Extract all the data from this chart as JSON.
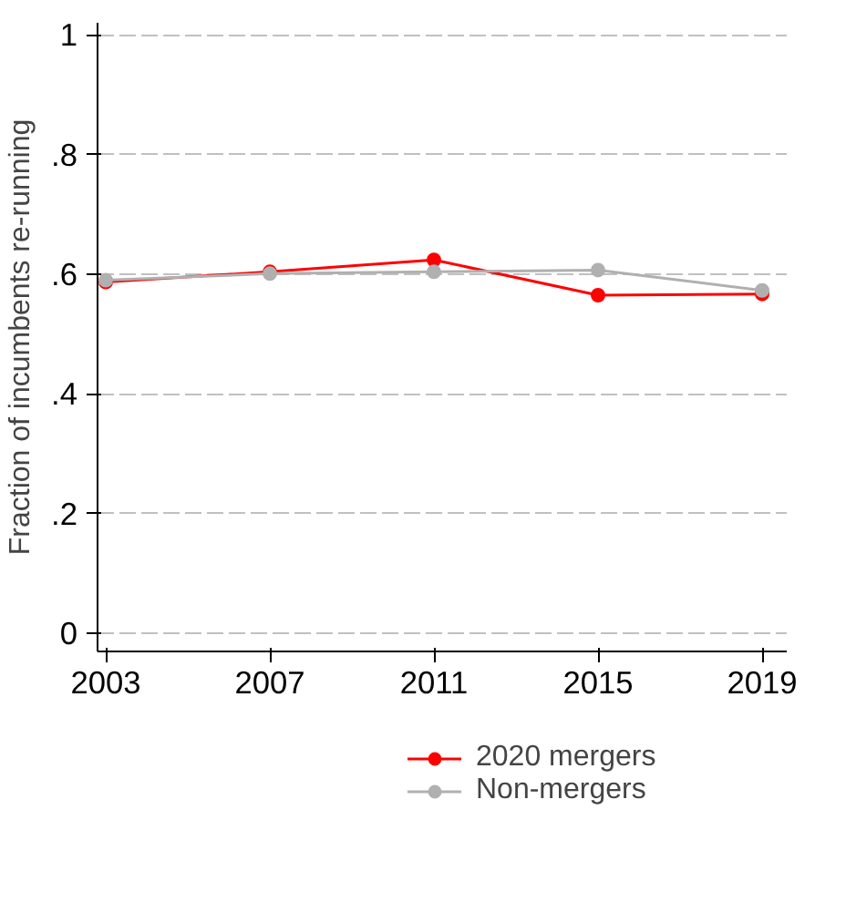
{
  "chart_data": {
    "type": "line",
    "ylabel": "Fraction of incumbents re-running",
    "x": [
      2003,
      2007,
      2011,
      2015,
      2019
    ],
    "series": [
      {
        "name": "2020 mergers",
        "color": "#ff0000",
        "values": [
          0.587,
          0.604,
          0.624,
          0.565,
          0.567
        ]
      },
      {
        "name": "Non-mergers",
        "color": "#b0b0b0",
        "values": [
          0.59,
          0.601,
          0.604,
          0.607,
          0.573
        ]
      }
    ],
    "xlim": [
      2002.8,
      2019.6
    ],
    "xticks": [
      2003,
      2007,
      2011,
      2015,
      2019
    ],
    "ylim": [
      -0.03,
      1.02
    ],
    "yticks": [
      {
        "value": 0,
        "label": "0"
      },
      {
        "value": 0.2,
        "label": ".2"
      },
      {
        "value": 0.4,
        "label": ".4"
      },
      {
        "value": 0.6,
        "label": ".6"
      },
      {
        "value": 0.8,
        "label": ".8"
      },
      {
        "value": 1,
        "label": "1"
      }
    ],
    "grid": "y",
    "legend": "bottom",
    "marker": "circle",
    "line_style": "solid"
  }
}
